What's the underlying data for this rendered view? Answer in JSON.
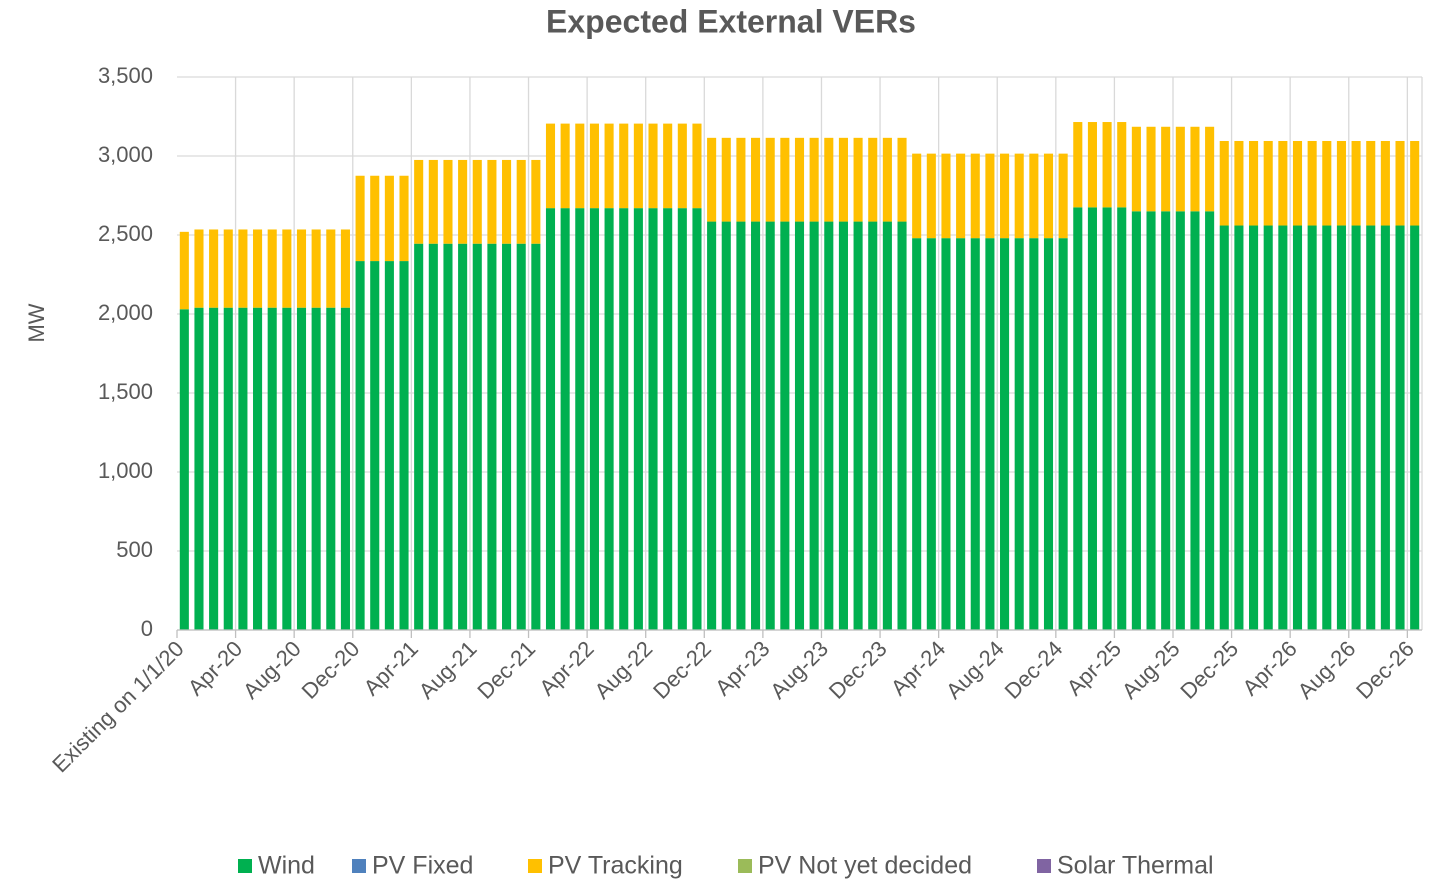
{
  "chart_data": {
    "type": "stacked_bar",
    "title": "Expected External VERs",
    "y_label": "MW",
    "categories": [
      "Existing on 1/1/20",
      null,
      null,
      null,
      "Apr-20",
      null,
      null,
      null,
      "Aug-20",
      null,
      null,
      null,
      "Dec-20",
      null,
      null,
      null,
      "Apr-21",
      null,
      null,
      null,
      "Aug-21",
      null,
      null,
      null,
      "Dec-21",
      null,
      null,
      null,
      "Apr-22",
      null,
      null,
      null,
      "Aug-22",
      null,
      null,
      null,
      "Dec-22",
      null,
      null,
      null,
      "Apr-23",
      null,
      null,
      null,
      "Aug-23",
      null,
      null,
      null,
      "Dec-23",
      null,
      null,
      null,
      "Apr-24",
      null,
      null,
      null,
      "Aug-24",
      null,
      null,
      null,
      "Dec-24",
      null,
      null,
      null,
      "Apr-25",
      null,
      null,
      null,
      "Aug-25",
      null,
      null,
      null,
      "Dec-25",
      null,
      null,
      null,
      "Apr-26",
      null,
      null,
      null,
      "Aug-26",
      null,
      null,
      null,
      "Dec-26"
    ],
    "series": [
      {
        "name": "Wind",
        "color": "#00b050",
        "values": [
          2030,
          2040,
          2040,
          2040,
          2040,
          2040,
          2040,
          2040,
          2040,
          2040,
          2040,
          2040,
          2335,
          2335,
          2335,
          2335,
          2445,
          2445,
          2445,
          2445,
          2445,
          2445,
          2445,
          2445,
          2445,
          2670,
          2670,
          2670,
          2670,
          2670,
          2670,
          2670,
          2670,
          2670,
          2670,
          2670,
          2585,
          2585,
          2585,
          2585,
          2585,
          2585,
          2585,
          2585,
          2585,
          2585,
          2585,
          2585,
          2585,
          2585,
          2480,
          2480,
          2480,
          2480,
          2480,
          2480,
          2480,
          2480,
          2480,
          2480,
          2480,
          2675,
          2675,
          2675,
          2675,
          2650,
          2650,
          2650,
          2650,
          2650,
          2650,
          2560,
          2560,
          2560,
          2560,
          2560,
          2560,
          2560,
          2560,
          2560,
          2560,
          2560,
          2560,
          2560,
          2560
        ]
      },
      {
        "name": "PV Fixed",
        "color": "#4f81bd",
        "values": [
          0,
          0,
          0,
          0,
          0,
          0,
          0,
          0,
          0,
          0,
          0,
          0,
          0,
          0,
          0,
          0,
          0,
          0,
          0,
          0,
          0,
          0,
          0,
          0,
          0,
          0,
          0,
          0,
          0,
          0,
          0,
          0,
          0,
          0,
          0,
          0,
          0,
          0,
          0,
          0,
          0,
          0,
          0,
          0,
          0,
          0,
          0,
          0,
          0,
          0,
          0,
          0,
          0,
          0,
          0,
          0,
          0,
          0,
          0,
          0,
          0,
          0,
          0,
          0,
          0,
          0,
          0,
          0,
          0,
          0,
          0,
          0,
          0,
          0,
          0,
          0,
          0,
          0,
          0,
          0,
          0,
          0,
          0,
          0,
          0
        ]
      },
      {
        "name": "PV Tracking",
        "color": "#ffc000",
        "values": [
          490,
          495,
          495,
          495,
          495,
          495,
          495,
          495,
          495,
          495,
          495,
          495,
          540,
          540,
          540,
          540,
          530,
          530,
          530,
          530,
          530,
          530,
          530,
          530,
          530,
          535,
          535,
          535,
          535,
          535,
          535,
          535,
          535,
          535,
          535,
          535,
          530,
          530,
          530,
          530,
          530,
          530,
          530,
          530,
          530,
          530,
          530,
          530,
          530,
          530,
          535,
          535,
          535,
          535,
          535,
          535,
          535,
          535,
          535,
          535,
          535,
          540,
          540,
          540,
          540,
          535,
          535,
          535,
          535,
          535,
          535,
          535,
          535,
          535,
          535,
          535,
          535,
          535,
          535,
          535,
          535,
          535,
          535,
          535,
          535
        ]
      },
      {
        "name": "PV Not yet decided",
        "color": "#9bbb59",
        "values": [
          0,
          0,
          0,
          0,
          0,
          0,
          0,
          0,
          0,
          0,
          0,
          0,
          0,
          0,
          0,
          0,
          0,
          0,
          0,
          0,
          0,
          0,
          0,
          0,
          0,
          0,
          0,
          0,
          0,
          0,
          0,
          0,
          0,
          0,
          0,
          0,
          0,
          0,
          0,
          0,
          0,
          0,
          0,
          0,
          0,
          0,
          0,
          0,
          0,
          0,
          0,
          0,
          0,
          0,
          0,
          0,
          0,
          0,
          0,
          0,
          0,
          0,
          0,
          0,
          0,
          0,
          0,
          0,
          0,
          0,
          0,
          0,
          0,
          0,
          0,
          0,
          0,
          0,
          0,
          0,
          0,
          0,
          0,
          0,
          0
        ]
      },
      {
        "name": "Solar Thermal",
        "color": "#8064a2",
        "values": [
          0,
          0,
          0,
          0,
          0,
          0,
          0,
          0,
          0,
          0,
          0,
          0,
          0,
          0,
          0,
          0,
          0,
          0,
          0,
          0,
          0,
          0,
          0,
          0,
          0,
          0,
          0,
          0,
          0,
          0,
          0,
          0,
          0,
          0,
          0,
          0,
          0,
          0,
          0,
          0,
          0,
          0,
          0,
          0,
          0,
          0,
          0,
          0,
          0,
          0,
          0,
          0,
          0,
          0,
          0,
          0,
          0,
          0,
          0,
          0,
          0,
          0,
          0,
          0,
          0,
          0,
          0,
          0,
          0,
          0,
          0,
          0,
          0,
          0,
          0,
          0,
          0,
          0,
          0,
          0,
          0,
          0,
          0,
          0,
          0
        ]
      }
    ],
    "ylim": [
      0,
      3500
    ],
    "yticks": [
      0,
      500,
      {
        "value": 1000,
        "label": "1,000"
      },
      {
        "value": 1500,
        "label": "1,500"
      },
      {
        "value": 2000,
        "label": "2,000"
      },
      {
        "value": 2500,
        "label": "2,500"
      },
      {
        "value": 3000,
        "label": "3,000"
      },
      {
        "value": 3500,
        "label": "3,500"
      }
    ],
    "grid": true,
    "legend": "bottom"
  }
}
